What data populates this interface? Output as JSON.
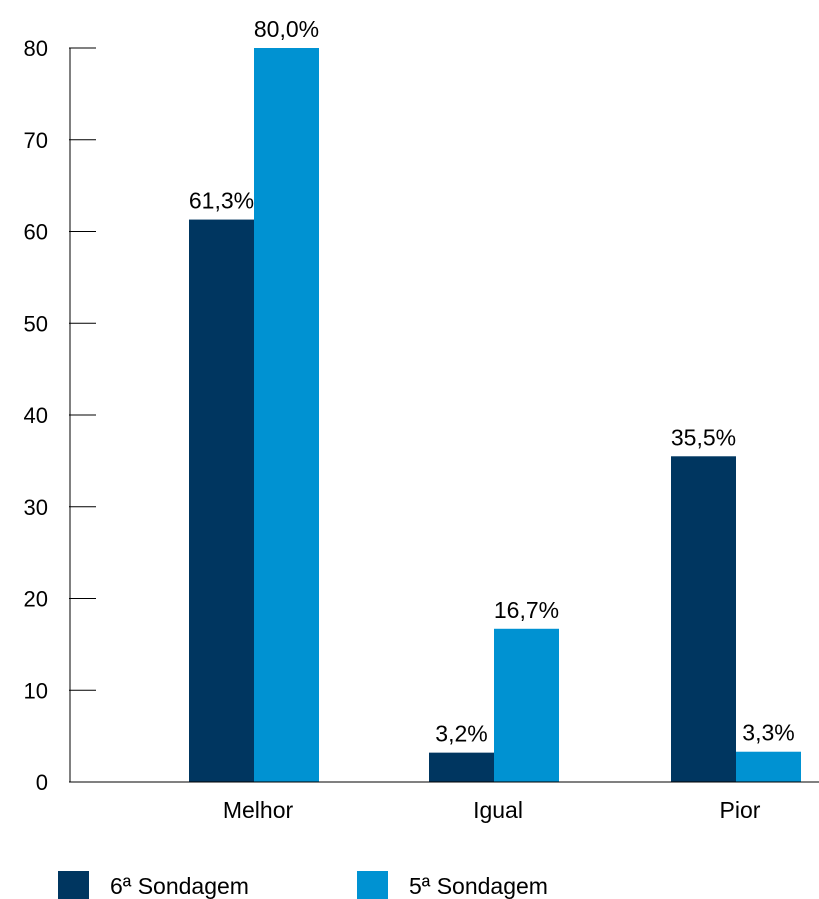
{
  "chart_data": {
    "type": "bar",
    "categories": [
      "Melhor",
      "Igual",
      "Pior"
    ],
    "series": [
      {
        "name": "6ª Sondagem",
        "color": "#003660",
        "values": [
          61.3,
          3.2,
          35.5
        ],
        "labels": [
          "61,3%",
          "3,2%",
          "35,5%"
        ]
      },
      {
        "name": "5ª Sondagem",
        "color": "#0092d2",
        "values": [
          80.0,
          16.7,
          3.3
        ],
        "labels": [
          "80,0%",
          "16,7%",
          "3,3%"
        ]
      }
    ],
    "ylim": [
      0,
      80
    ],
    "yticks": [
      0,
      10,
      20,
      30,
      40,
      50,
      60,
      70,
      80
    ],
    "grid": false,
    "legend": "bottom-left"
  }
}
